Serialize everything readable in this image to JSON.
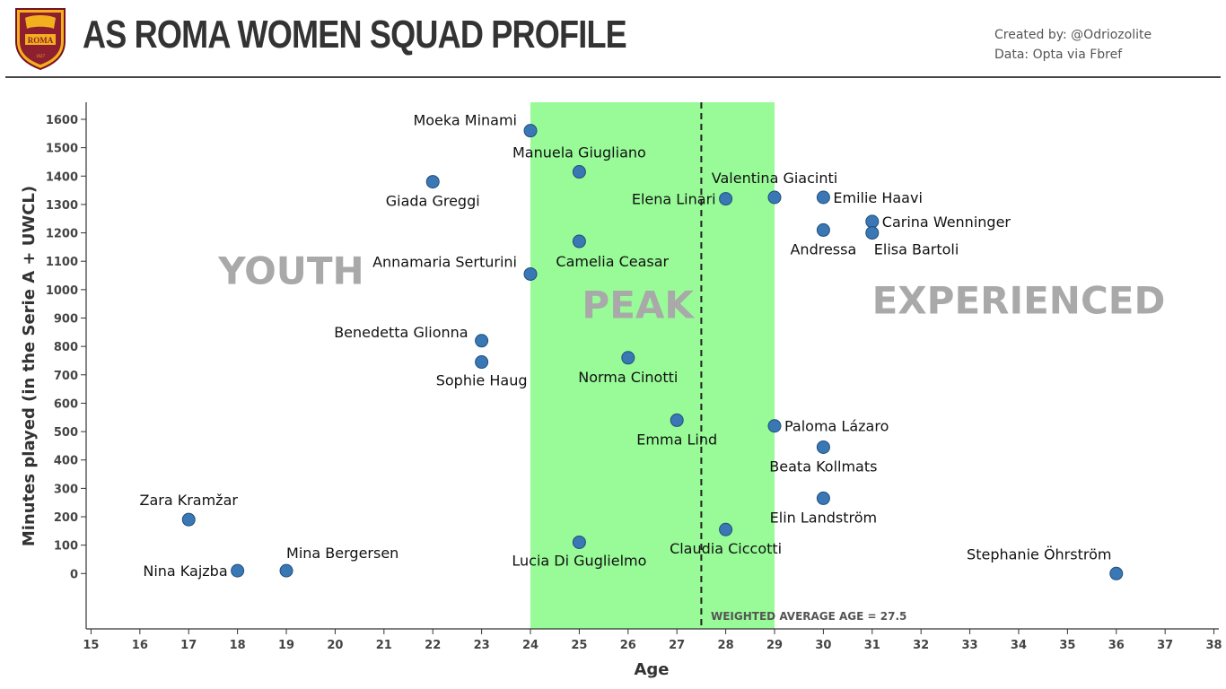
{
  "header": {
    "title": "AS ROMA WOMEN SQUAD PROFILE",
    "created_by": "Created by: @Odriozolite",
    "data_source": "Data: Opta via Fbref",
    "logo_text": "ROMA",
    "logo_year": "1927"
  },
  "colors": {
    "point": "#3a78b5",
    "point_edge": "#1f4e79",
    "peak_band": "#98fb98",
    "zone_text": "#a9a9a9",
    "axis": "#333333"
  },
  "chart_data": {
    "type": "scatter",
    "xlabel": "Age",
    "ylabel": "Minutes played (in the Serie A + UWCL)",
    "xlim": [
      14.9,
      38.1
    ],
    "ylim": [
      -195,
      1660
    ],
    "xticks": [
      15,
      16,
      17,
      18,
      19,
      20,
      21,
      22,
      23,
      24,
      25,
      26,
      27,
      28,
      29,
      30,
      31,
      32,
      33,
      34,
      35,
      36,
      37,
      38
    ],
    "yticks": [
      0,
      100,
      200,
      300,
      400,
      500,
      600,
      700,
      800,
      900,
      1000,
      1100,
      1200,
      1300,
      1400,
      1500,
      1600
    ],
    "grid": false,
    "peak_band": [
      24,
      29
    ],
    "weighted_average_age": 27.5,
    "average_label": "WEIGHTED AVERAGE AGE = 27.5",
    "zones": [
      {
        "label": "YOUTH",
        "x": 19.1,
        "y": 1020
      },
      {
        "label": "PEAK",
        "x": 26.2,
        "y": 900
      },
      {
        "label": "EXPERIENCED",
        "x": 34.0,
        "y": 915
      }
    ],
    "points": [
      {
        "name": "Moeka Minami",
        "age": 24,
        "minutes": 1560,
        "label_pos": "top-left"
      },
      {
        "name": "Manuela Giugliano",
        "age": 25,
        "minutes": 1415,
        "label_pos": "above"
      },
      {
        "name": "Giada Greggi",
        "age": 22,
        "minutes": 1380,
        "label_pos": "below"
      },
      {
        "name": "Valentina Giacinti",
        "age": 29,
        "minutes": 1325,
        "label_pos": "above"
      },
      {
        "name": "Elena Linari",
        "age": 28,
        "minutes": 1320,
        "label_pos": "left"
      },
      {
        "name": "Emilie Haavi",
        "age": 30,
        "minutes": 1325,
        "label_pos": "right"
      },
      {
        "name": "Carina Wenninger",
        "age": 31,
        "minutes": 1240,
        "label_pos": "right"
      },
      {
        "name": "Andressa",
        "age": 30,
        "minutes": 1210,
        "label_pos": "below"
      },
      {
        "name": "Elisa Bartoli",
        "age": 31,
        "minutes": 1200,
        "label_pos": "below-right"
      },
      {
        "name": "Camelia Ceasar",
        "age": 25,
        "minutes": 1170,
        "label_pos": "below-right"
      },
      {
        "name": "Annamaria Serturini",
        "age": 24,
        "minutes": 1055,
        "label_pos": "top-left"
      },
      {
        "name": "Benedetta Glionna",
        "age": 23,
        "minutes": 820,
        "label_pos": "top-left"
      },
      {
        "name": "Sophie Haug",
        "age": 23,
        "minutes": 745,
        "label_pos": "below"
      },
      {
        "name": "Norma Cinotti",
        "age": 26,
        "minutes": 760,
        "label_pos": "below"
      },
      {
        "name": "Emma Lind",
        "age": 27,
        "minutes": 540,
        "label_pos": "below"
      },
      {
        "name": "Paloma Lázaro",
        "age": 29,
        "minutes": 520,
        "label_pos": "right"
      },
      {
        "name": "Beata Kollmats",
        "age": 30,
        "minutes": 445,
        "label_pos": "below"
      },
      {
        "name": "Elin Landström",
        "age": 30,
        "minutes": 265,
        "label_pos": "below"
      },
      {
        "name": "Zara Kramžar",
        "age": 17,
        "minutes": 190,
        "label_pos": "above"
      },
      {
        "name": "Claudia Ciccotti",
        "age": 28,
        "minutes": 155,
        "label_pos": "below"
      },
      {
        "name": "Lucia Di Guglielmo",
        "age": 25,
        "minutes": 110,
        "label_pos": "below"
      },
      {
        "name": "Mina Bergersen",
        "age": 19,
        "minutes": 10,
        "label_pos": "above-right"
      },
      {
        "name": "Nina Kajzba",
        "age": 18,
        "minutes": 10,
        "label_pos": "left"
      },
      {
        "name": "Stephanie Öhrström",
        "age": 36,
        "minutes": 0,
        "label_pos": "above-left"
      }
    ]
  }
}
